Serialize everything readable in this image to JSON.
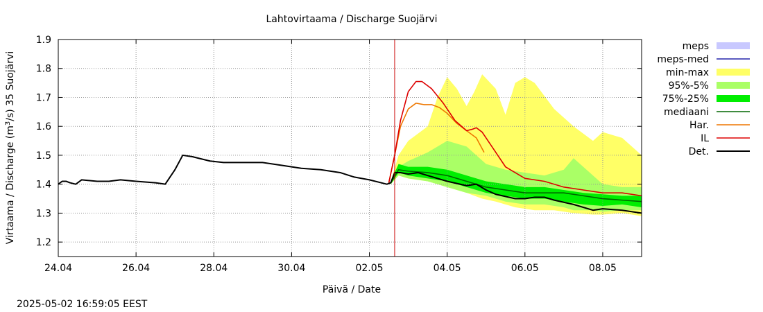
{
  "chart_data": {
    "type": "area",
    "title": "Lahtovirtaama / Discharge  Suojärvi",
    "ylabel_prefix": "Virtaama / Discharge (m",
    "ylabel_sup": "3",
    "ylabel_suffix": "/s)  35 Suojärvi",
    "xlabel": "Päivä / Date",
    "xlim": [
      0,
      15
    ],
    "ylim": [
      1.15,
      1.9
    ],
    "yticks": [
      "1.2",
      "1.3",
      "1.4",
      "1.5",
      "1.6",
      "1.7",
      "1.8",
      "1.9"
    ],
    "xticks": [
      {
        "x": 0,
        "label": "24.04"
      },
      {
        "x": 2,
        "label": "26.04"
      },
      {
        "x": 4,
        "label": "28.04"
      },
      {
        "x": 6,
        "label": "30.04"
      },
      {
        "x": 8,
        "label": "02.05"
      },
      {
        "x": 10,
        "label": "04.05"
      },
      {
        "x": 12,
        "label": "06.05"
      },
      {
        "x": 14,
        "label": "08.05"
      }
    ],
    "x_unit": "days from 24.04 00:00",
    "grid": true,
    "legend_position": "right",
    "forecast_start": 8.65,
    "series": [
      {
        "name": "min-max",
        "kind": "band",
        "color": "#ffff66",
        "x": [
          8.55,
          8.75,
          9.0,
          9.5,
          9.75,
          10.0,
          10.25,
          10.5,
          10.7,
          10.9,
          11.25,
          11.5,
          11.75,
          12.0,
          12.25,
          12.75,
          13.25,
          13.75,
          14.0,
          14.5,
          15.0
        ],
        "low": [
          1.4,
          1.43,
          1.42,
          1.41,
          1.4,
          1.39,
          1.38,
          1.37,
          1.36,
          1.35,
          1.34,
          1.33,
          1.32,
          1.315,
          1.31,
          1.31,
          1.3,
          1.295,
          1.295,
          1.3,
          1.29
        ],
        "high": [
          1.41,
          1.5,
          1.55,
          1.6,
          1.7,
          1.77,
          1.73,
          1.67,
          1.72,
          1.78,
          1.73,
          1.64,
          1.75,
          1.77,
          1.75,
          1.66,
          1.6,
          1.55,
          1.58,
          1.56,
          1.5
        ]
      },
      {
        "name": "95%-5%",
        "kind": "band",
        "color": "#aaff66",
        "x": [
          8.55,
          8.75,
          9.0,
          9.5,
          10.0,
          10.5,
          11.0,
          11.5,
          12.0,
          12.5,
          13.0,
          13.25,
          13.75,
          14.0,
          14.5,
          15.0
        ],
        "low": [
          1.4,
          1.43,
          1.42,
          1.41,
          1.39,
          1.37,
          1.36,
          1.34,
          1.33,
          1.33,
          1.32,
          1.31,
          1.31,
          1.305,
          1.31,
          1.31
        ],
        "high": [
          1.41,
          1.46,
          1.48,
          1.51,
          1.55,
          1.53,
          1.47,
          1.45,
          1.44,
          1.43,
          1.45,
          1.49,
          1.43,
          1.4,
          1.39,
          1.39
        ]
      },
      {
        "name": "75%-25%",
        "kind": "band",
        "color": "#00ee00",
        "x": [
          8.55,
          8.75,
          9.0,
          9.5,
          10.0,
          10.5,
          11.0,
          11.5,
          12.0,
          12.5,
          13.0,
          13.5,
          14.0,
          14.5,
          15.0
        ],
        "low": [
          1.4,
          1.44,
          1.43,
          1.42,
          1.41,
          1.39,
          1.37,
          1.36,
          1.35,
          1.35,
          1.34,
          1.33,
          1.325,
          1.33,
          1.32
        ],
        "high": [
          1.41,
          1.47,
          1.46,
          1.46,
          1.45,
          1.43,
          1.41,
          1.4,
          1.39,
          1.39,
          1.38,
          1.37,
          1.365,
          1.36,
          1.36
        ]
      },
      {
        "name": "mediaani",
        "kind": "line",
        "color": "#006600",
        "x": [
          8.55,
          8.75,
          9.0,
          9.5,
          10.0,
          10.5,
          11.0,
          11.5,
          12.0,
          12.5,
          13.0,
          13.5,
          14.0,
          14.5,
          15.0
        ],
        "y": [
          1.405,
          1.45,
          1.445,
          1.44,
          1.43,
          1.41,
          1.39,
          1.38,
          1.37,
          1.37,
          1.37,
          1.36,
          1.35,
          1.345,
          1.34
        ]
      },
      {
        "name": "Har.",
        "kind": "line",
        "color": "#ee7700",
        "x": [
          8.5,
          8.65,
          8.8,
          9.0,
          9.2,
          9.4,
          9.6,
          9.8,
          10.0,
          10.25,
          10.5,
          10.75,
          10.95
        ],
        "y": [
          1.405,
          1.5,
          1.6,
          1.66,
          1.68,
          1.675,
          1.675,
          1.665,
          1.645,
          1.61,
          1.585,
          1.56,
          1.51
        ]
      },
      {
        "name": "IL",
        "kind": "line",
        "color": "#dd0000",
        "x": [
          8.5,
          8.65,
          8.8,
          9.0,
          9.2,
          9.35,
          9.6,
          9.9,
          10.2,
          10.5,
          10.65,
          10.75,
          10.9,
          11.2,
          11.5,
          12.0,
          12.5,
          13.0,
          13.5,
          14.0,
          14.5,
          15.0
        ],
        "y": [
          1.405,
          1.5,
          1.62,
          1.72,
          1.755,
          1.755,
          1.73,
          1.68,
          1.62,
          1.585,
          1.59,
          1.595,
          1.58,
          1.52,
          1.46,
          1.42,
          1.41,
          1.39,
          1.38,
          1.37,
          1.37,
          1.36
        ]
      },
      {
        "name": "Det.",
        "kind": "line",
        "color": "#000000",
        "x": [
          0.0,
          0.1,
          0.2,
          0.3,
          0.45,
          0.6,
          1.0,
          1.2,
          1.3,
          1.6,
          2.0,
          2.5,
          2.75,
          3.0,
          3.2,
          3.45,
          3.6,
          3.9,
          4.25,
          4.75,
          5.25,
          5.75,
          6.25,
          6.75,
          7.25,
          7.6,
          8.0,
          8.3,
          8.45,
          8.55,
          8.65,
          8.8,
          9.0,
          9.25,
          9.5,
          10.0,
          10.5,
          10.75,
          11.0,
          11.25,
          11.75,
          12.0,
          12.25,
          12.5,
          12.75,
          13.25,
          13.75,
          14.0,
          14.5,
          15.0
        ],
        "y": [
          1.4,
          1.41,
          1.41,
          1.405,
          1.4,
          1.415,
          1.41,
          1.41,
          1.41,
          1.415,
          1.41,
          1.405,
          1.4,
          1.45,
          1.5,
          1.495,
          1.49,
          1.48,
          1.475,
          1.475,
          1.475,
          1.465,
          1.455,
          1.45,
          1.44,
          1.425,
          1.415,
          1.405,
          1.4,
          1.405,
          1.44,
          1.44,
          1.435,
          1.44,
          1.43,
          1.41,
          1.395,
          1.4,
          1.38,
          1.365,
          1.35,
          1.35,
          1.355,
          1.355,
          1.345,
          1.33,
          1.31,
          1.315,
          1.31,
          1.3
        ]
      }
    ],
    "legend": [
      {
        "label": "meps",
        "style": "box",
        "color": "#c8c8ff"
      },
      {
        "label": "meps-med",
        "style": "line",
        "color": "#2222aa"
      },
      {
        "label": "min-max",
        "style": "box",
        "color": "#ffff66"
      },
      {
        "label": "95%-5%",
        "style": "box",
        "color": "#aaff66"
      },
      {
        "label": "75%-25%",
        "style": "box",
        "color": "#00ee00"
      },
      {
        "label": "mediaani",
        "style": "line",
        "color": "#006600"
      },
      {
        "label": "Har.",
        "style": "line",
        "color": "#ee7700"
      },
      {
        "label": "IL",
        "style": "line",
        "color": "#dd0000"
      },
      {
        "label": "Det.",
        "style": "line",
        "color": "#000000"
      }
    ]
  },
  "timestamp": "2025-05-02 16:59:05 EEST"
}
